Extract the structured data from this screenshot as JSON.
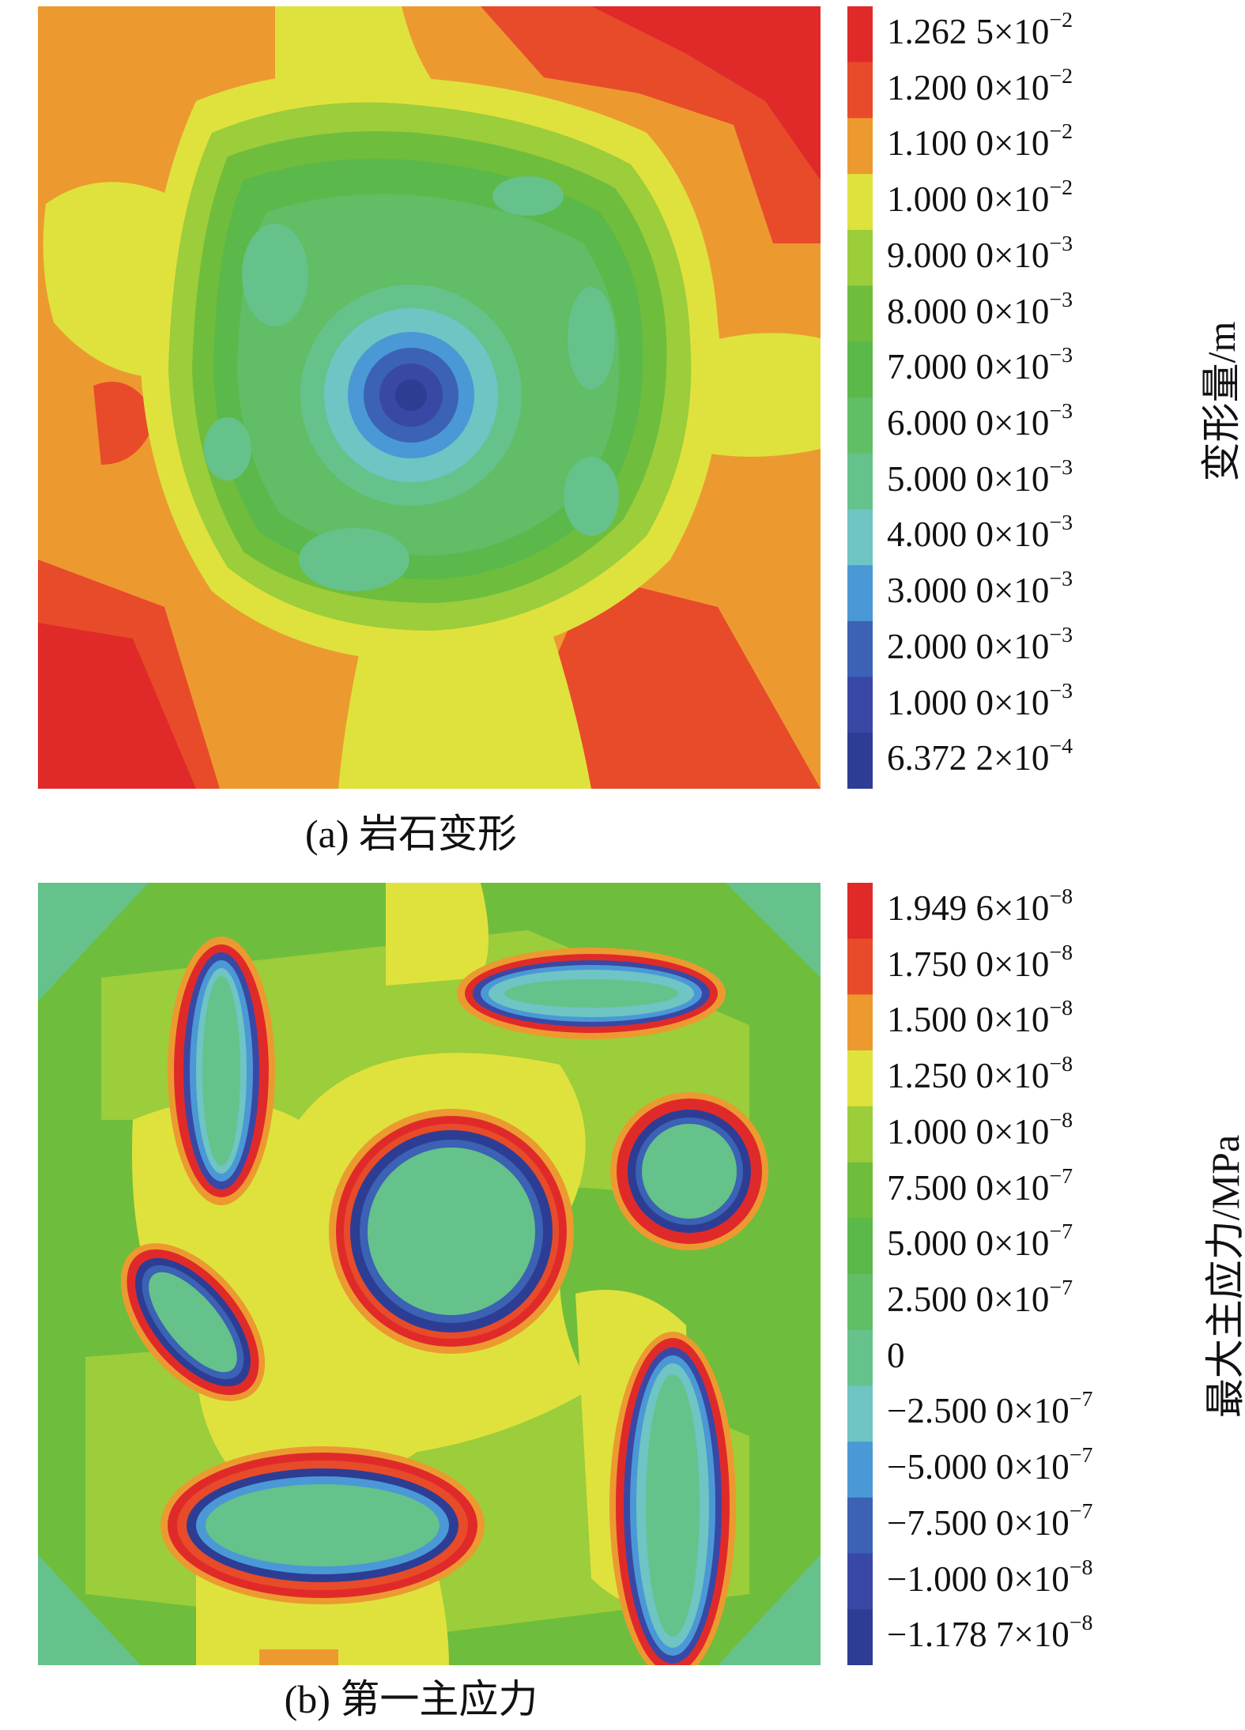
{
  "chart_data": [
    {
      "type": "heatmap",
      "caption": "(a) 岩石变形",
      "colorbar_label": "变形量/m",
      "colorbar_ticks": [
        {
          "mant": "1.262 5",
          "exp": "-2"
        },
        {
          "mant": "1.200 0",
          "exp": "-2"
        },
        {
          "mant": "1.100 0",
          "exp": "-2"
        },
        {
          "mant": "1.000 0",
          "exp": "-2"
        },
        {
          "mant": "9.000 0",
          "exp": "-3"
        },
        {
          "mant": "8.000 0",
          "exp": "-3"
        },
        {
          "mant": "7.000 0",
          "exp": "-3"
        },
        {
          "mant": "6.000 0",
          "exp": "-3"
        },
        {
          "mant": "5.000 0",
          "exp": "-3"
        },
        {
          "mant": "4.000 0",
          "exp": "-3"
        },
        {
          "mant": "3.000 0",
          "exp": "-3"
        },
        {
          "mant": "2.000 0",
          "exp": "-3"
        },
        {
          "mant": "1.000 0",
          "exp": "-3"
        },
        {
          "mant": "6.372 2",
          "exp": "-4"
        }
      ],
      "colorbar_colors": [
        "#e02a2a",
        "#e84b2a",
        "#ec9a30",
        "#dfe23d",
        "#9ccd3b",
        "#6fbd3c",
        "#5bb84a",
        "#61bd66",
        "#65c28a",
        "#6fc4c4",
        "#4b98d6",
        "#3b62b4",
        "#3948a4",
        "#2d3d94"
      ]
    },
    {
      "type": "heatmap",
      "caption": "(b) 第一主应力",
      "colorbar_label": "最大主应力/MPa",
      "colorbar_ticks": [
        {
          "mant": "1.949 6",
          "exp": "-8"
        },
        {
          "mant": "1.750 0",
          "exp": "-8"
        },
        {
          "mant": "1.500 0",
          "exp": "-8"
        },
        {
          "mant": "1.250 0",
          "exp": "-8"
        },
        {
          "mant": "1.000 0",
          "exp": "-8"
        },
        {
          "mant": "7.500 0",
          "exp": "-7"
        },
        {
          "mant": "5.000 0",
          "exp": "-7"
        },
        {
          "mant": "2.500 0",
          "exp": "-7"
        },
        {
          "mant": "0",
          "exp": ""
        },
        {
          "mant": "−2.500 0",
          "exp": "-7"
        },
        {
          "mant": "−5.000 0",
          "exp": "-7"
        },
        {
          "mant": "−7.500 0",
          "exp": "-7"
        },
        {
          "mant": "−1.000 0",
          "exp": "-8"
        },
        {
          "mant": "−1.178 7",
          "exp": "-8"
        }
      ],
      "colorbar_colors": [
        "#e02a2a",
        "#e84b2a",
        "#ec9a30",
        "#dfe23d",
        "#9ccd3b",
        "#6fbd3c",
        "#5bb84a",
        "#61bd66",
        "#65c28a",
        "#6fc4c4",
        "#4b98d6",
        "#3b62b4",
        "#3948a4",
        "#2d3d94"
      ]
    }
  ]
}
